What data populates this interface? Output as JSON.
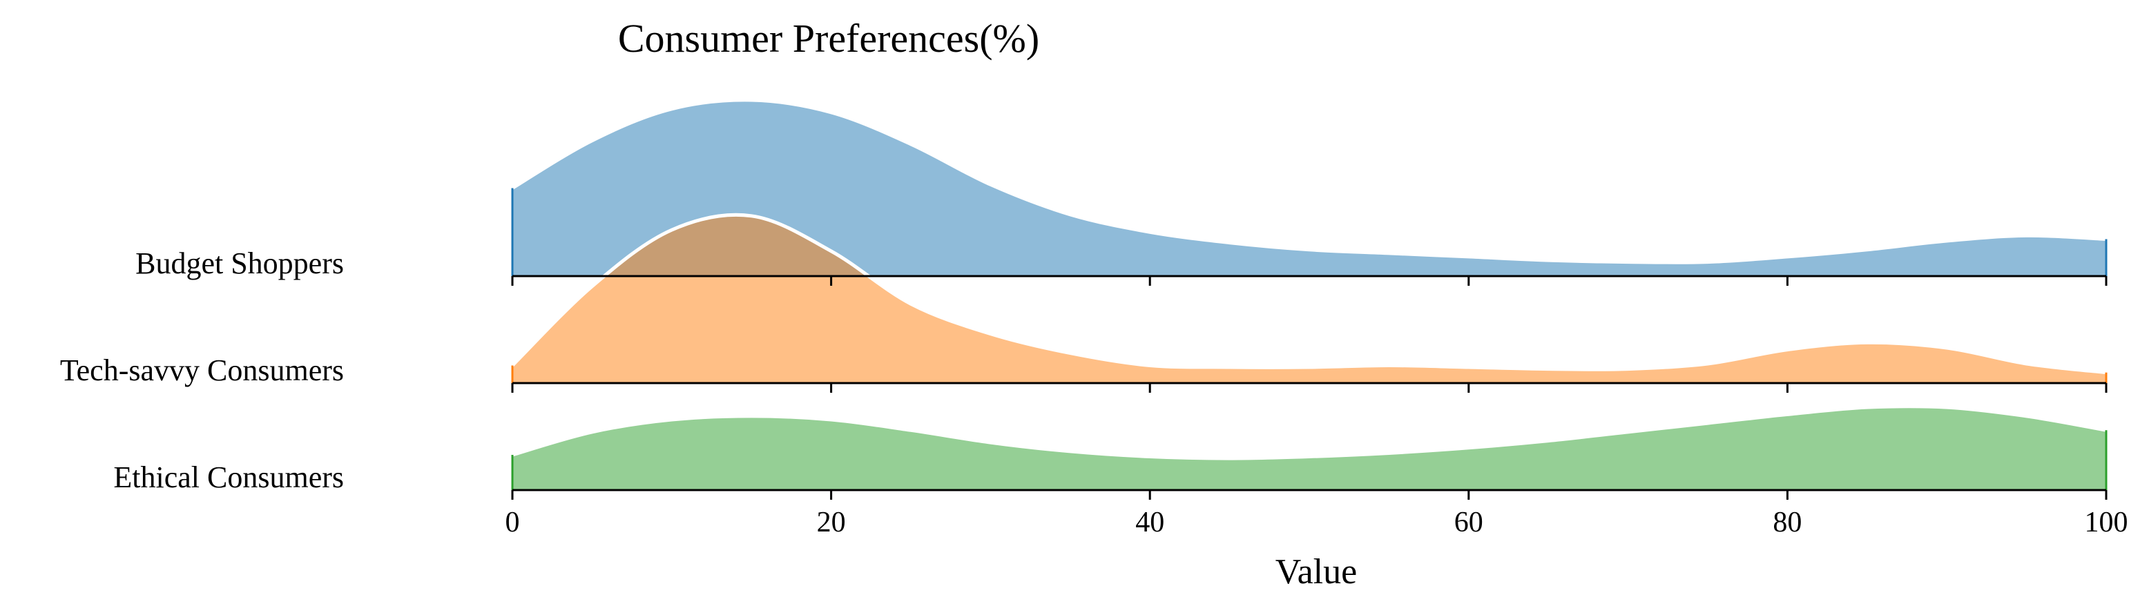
{
  "chart_data": {
    "type": "ridgeline",
    "title": "Consumer Preferences(%)",
    "xlabel": "Value",
    "ylabel": "",
    "xlim": [
      0,
      100
    ],
    "xticks": [
      0,
      20,
      40,
      60,
      80,
      100
    ],
    "xtick_labels": [
      "0",
      "20",
      "40",
      "60",
      "80",
      "100"
    ],
    "grid": false,
    "legend": "none",
    "categories": [
      "Budget Shoppers",
      "Tech-savvy Consumers",
      "Ethical Consumers"
    ],
    "colors": {
      "Budget Shoppers": "#1f77b4",
      "Tech-savvy Consumers": "#ff7f0e",
      "Ethical Consumers": "#2ca02c"
    },
    "x": [
      0,
      5,
      10,
      15,
      20,
      25,
      30,
      35,
      40,
      45,
      50,
      55,
      60,
      65,
      70,
      75,
      80,
      85,
      90,
      95,
      100
    ],
    "series": [
      {
        "name": "Budget Shoppers",
        "density": [
          0.5,
          0.77,
          0.95,
          1.0,
          0.93,
          0.75,
          0.52,
          0.35,
          0.25,
          0.19,
          0.15,
          0.13,
          0.11,
          0.09,
          0.08,
          0.08,
          0.11,
          0.15,
          0.2,
          0.23,
          0.21
        ]
      },
      {
        "name": "Tech-savvy Consumers",
        "density": [
          0.1,
          0.55,
          0.87,
          0.95,
          0.75,
          0.45,
          0.28,
          0.17,
          0.1,
          0.09,
          0.09,
          0.1,
          0.09,
          0.08,
          0.08,
          0.11,
          0.19,
          0.23,
          0.2,
          0.11,
          0.06
        ]
      },
      {
        "name": "Ethical Consumers",
        "density": [
          0.2,
          0.33,
          0.4,
          0.42,
          0.4,
          0.34,
          0.27,
          0.22,
          0.19,
          0.18,
          0.19,
          0.21,
          0.24,
          0.28,
          0.33,
          0.38,
          0.43,
          0.47,
          0.47,
          0.42,
          0.34
        ]
      }
    ]
  }
}
